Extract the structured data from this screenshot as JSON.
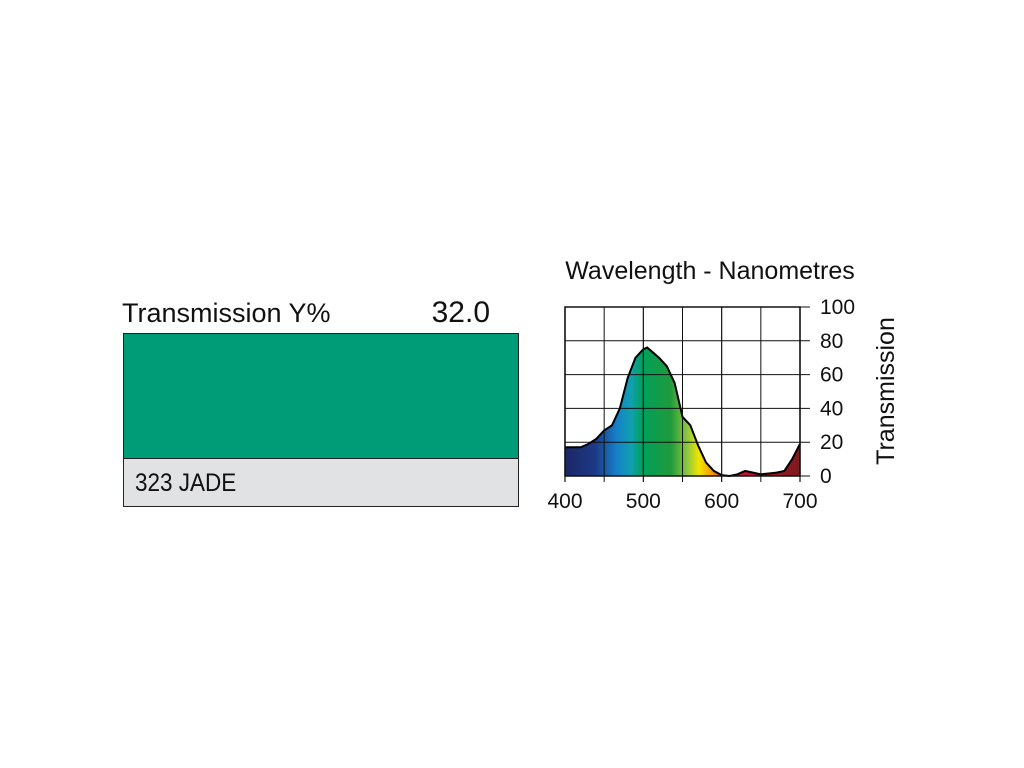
{
  "swatch": {
    "label": "Transmission Y%",
    "value": "32.0",
    "color": "#009b77",
    "name": "323 JADE"
  },
  "chart_data": {
    "type": "area",
    "title": "Wavelength - Nanometres",
    "y_label": "Transmission",
    "x": [
      400,
      410,
      420,
      430,
      440,
      450,
      460,
      470,
      480,
      490,
      500,
      505,
      510,
      520,
      530,
      540,
      550,
      560,
      570,
      580,
      590,
      600,
      610,
      620,
      630,
      640,
      650,
      660,
      670,
      680,
      690,
      700
    ],
    "values": [
      17,
      17,
      17,
      19,
      22,
      27,
      30,
      40,
      58,
      70,
      75,
      76,
      74,
      70,
      65,
      55,
      35,
      30,
      18,
      8,
      3,
      0.5,
      0,
      1,
      3,
      2,
      1,
      1.5,
      2,
      3,
      10,
      19
    ],
    "xlim": [
      400,
      700
    ],
    "ylim": [
      0,
      100
    ],
    "xticks": [
      400,
      500,
      600,
      700
    ],
    "xminorticks": [
      450,
      550,
      650
    ],
    "yticks": [
      0,
      20,
      40,
      60,
      80,
      100
    ],
    "grid": true
  }
}
